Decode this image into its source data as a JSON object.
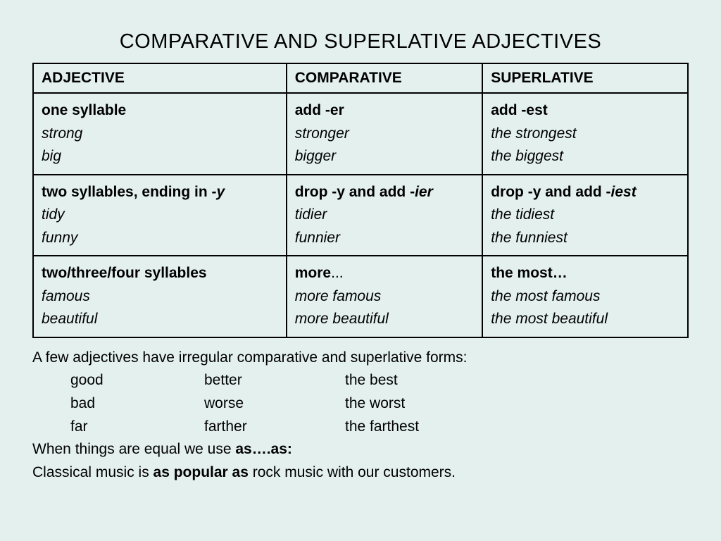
{
  "title": "COMPARATIVE AND SUPERLATIVE ADJECTIVES",
  "headers": {
    "c1": "ADJECTIVE",
    "c2": "COMPARATIVE",
    "c3": "SUPERLATIVE"
  },
  "rows": [
    {
      "c1": {
        "head_a": "one syllable",
        "head_b": "",
        "ex1": "strong",
        "ex2": "big"
      },
      "c2": {
        "head_a": "add ",
        "head_b": "-er",
        "ex1": "stronger",
        "ex2": "bigger"
      },
      "c3": {
        "head_a": "add ",
        "head_b": "-est",
        "ex1": "the strongest",
        "ex2": "the biggest"
      }
    },
    {
      "c1": {
        "head_a": "two syllables, ending in ",
        "head_b": "-y",
        "ex1": "tidy",
        "ex2": "funny"
      },
      "c2": {
        "head_a": "drop -y and add -",
        "head_b": "ier",
        "ex1": "tidier",
        "ex2": "funnier"
      },
      "c3": {
        "head_a": "drop -y and add -",
        "head_b": "iest",
        "ex1": "the tidiest",
        "ex2": "the funniest"
      }
    },
    {
      "c1": {
        "head_a": "two/three/four syllables",
        "head_b": "",
        "ex1": "famous",
        "ex2": "beautiful"
      },
      "c2": {
        "head_a": "more",
        "head_b": "",
        "head_c": "...",
        "ex1": "more famous",
        "ex2": "more beautiful"
      },
      "c3": {
        "head_a": "the most…",
        "head_b": "",
        "ex1": "the most famous",
        "ex2": "the most beautiful"
      }
    }
  ],
  "notes": {
    "intro": "A few adjectives have irregular comparative and superlative forms:",
    "irregulars": [
      {
        "a": "good",
        "b": "better",
        "c": "the best"
      },
      {
        "a": "bad",
        "b": "worse",
        "c": "the worst"
      },
      {
        "a": "far",
        "b": "farther",
        "c": "the farthest"
      }
    ],
    "equal_a": "When things are equal we use ",
    "equal_b": "as….as:",
    "example_a": "Classical music is ",
    "example_b": "as popular as",
    "example_c": " rock music with our customers."
  },
  "colors": {
    "background": "#e3f0ed",
    "border": "#000000",
    "text": "#000000"
  }
}
